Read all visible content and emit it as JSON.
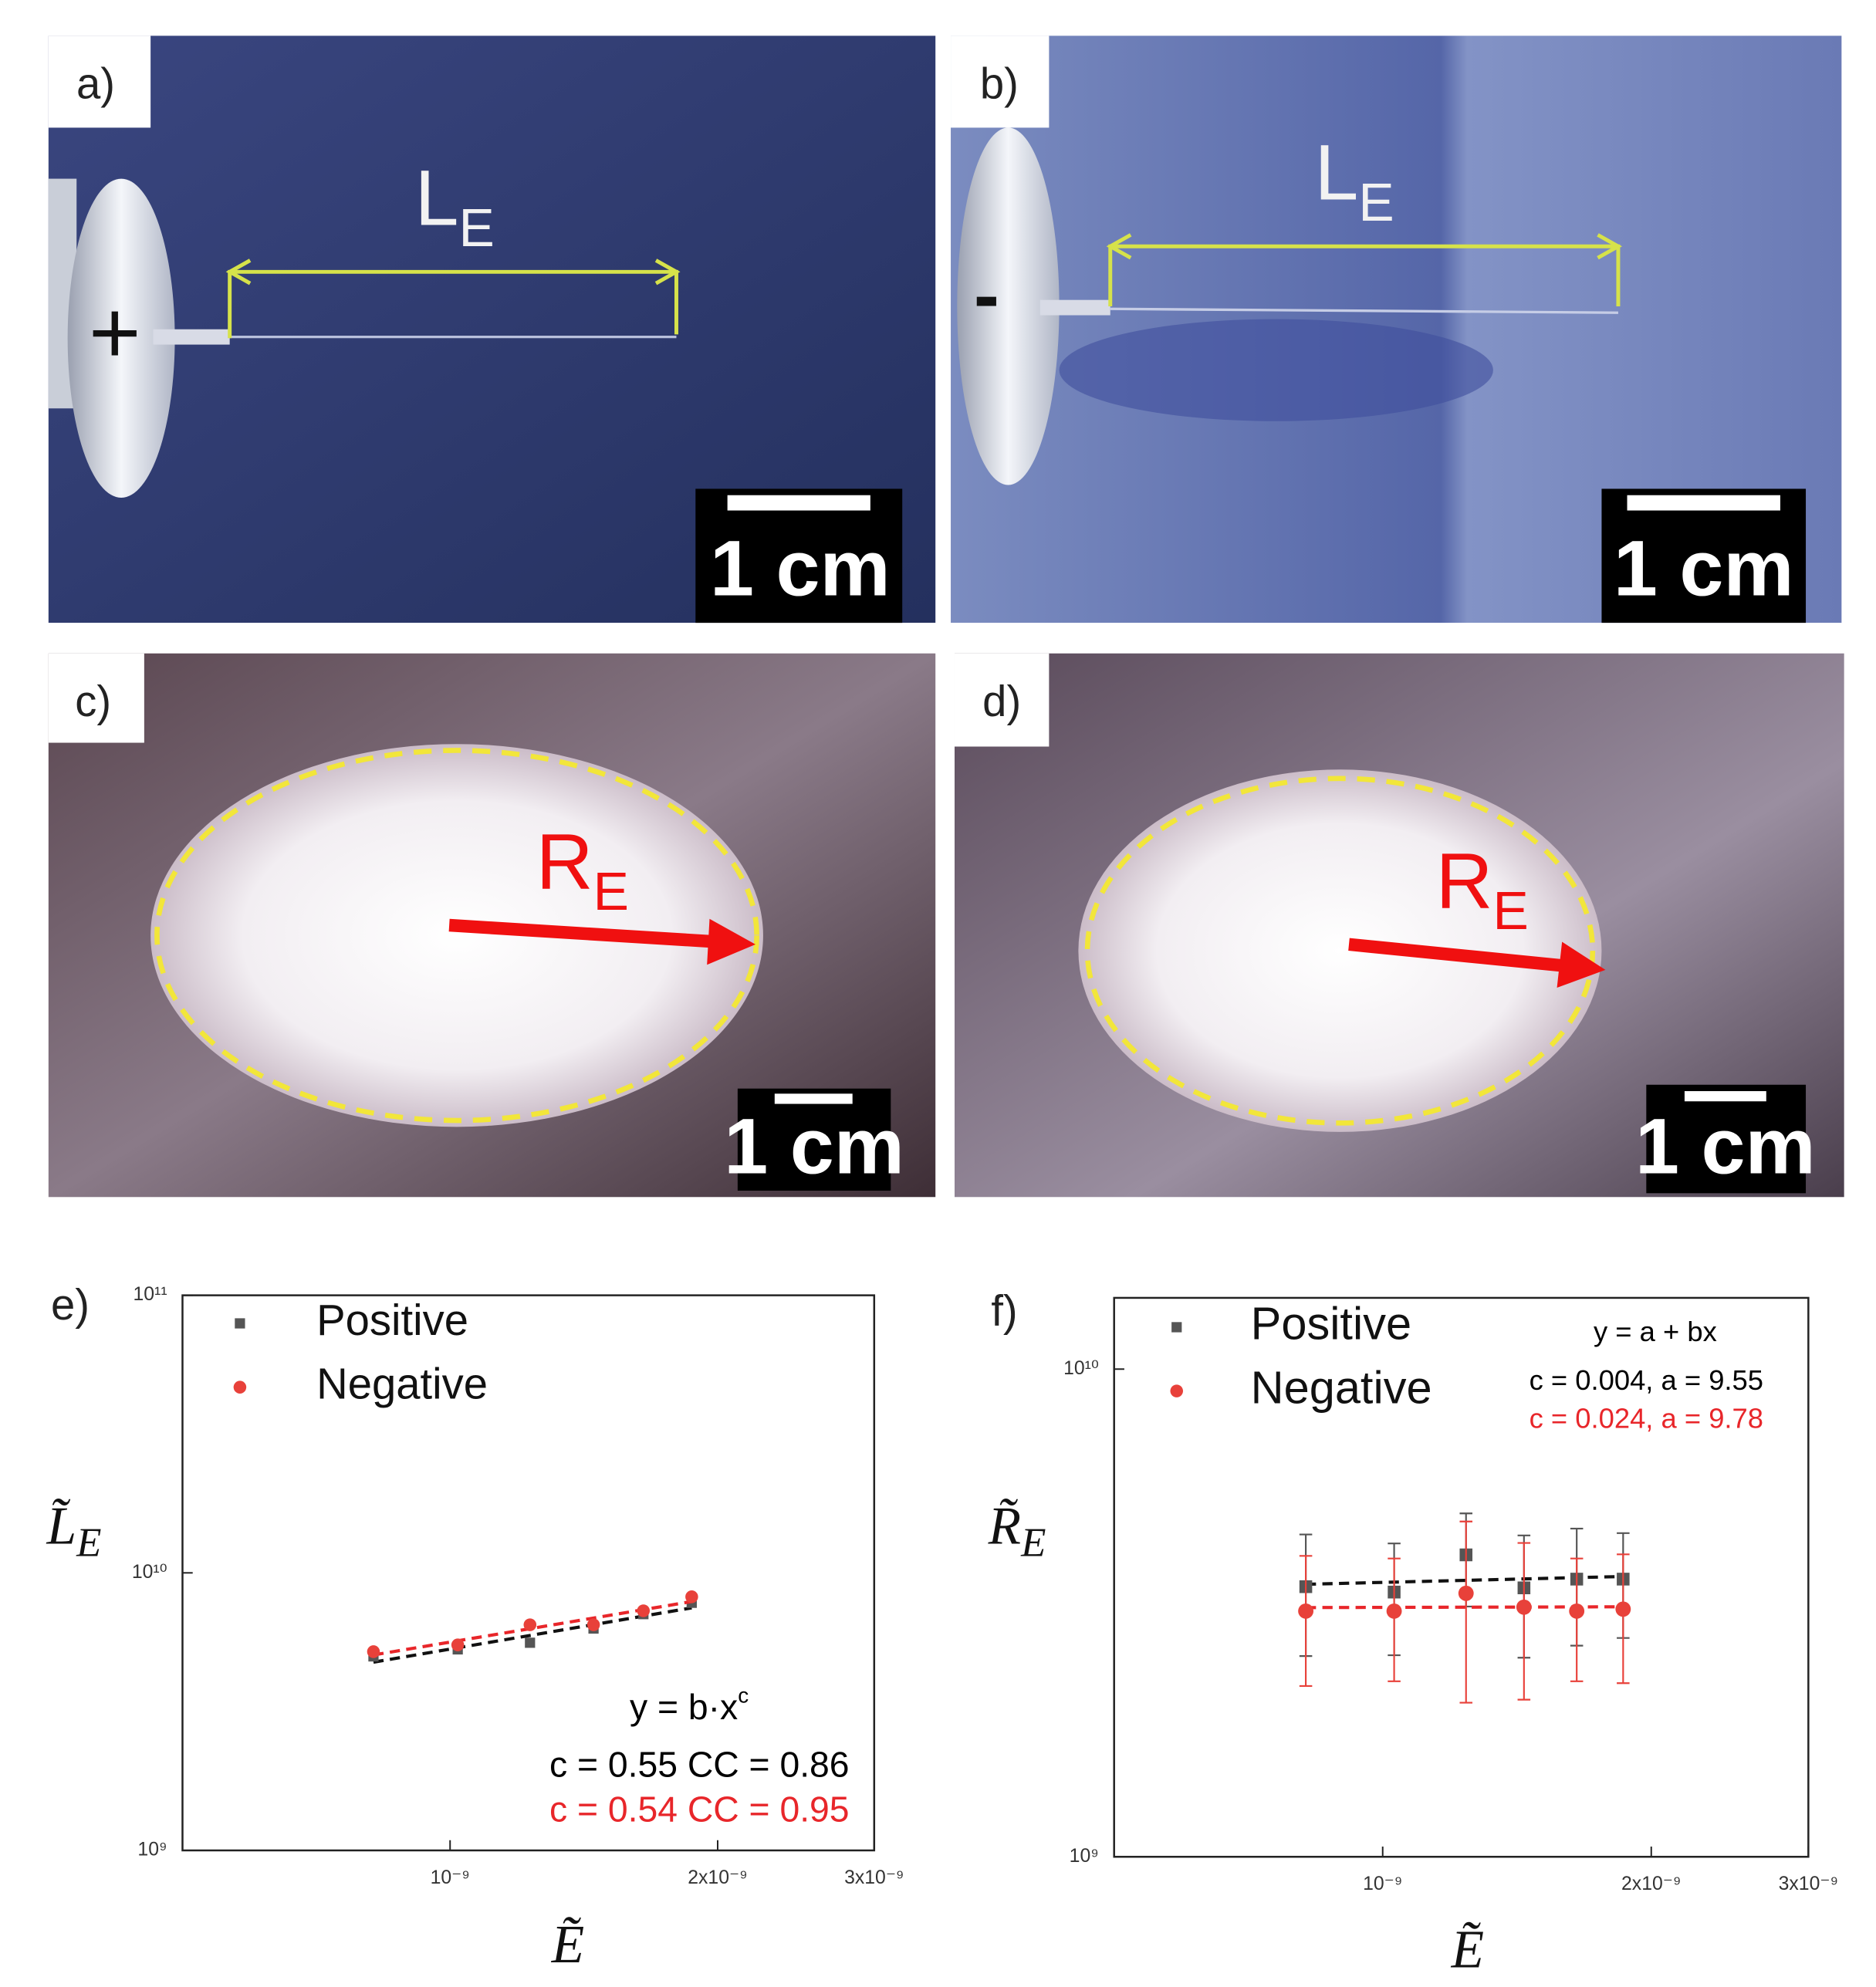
{
  "photos": [
    {
      "label": "a)",
      "marker": "+",
      "measure": {
        "text": "L",
        "sub": "E"
      },
      "scale": "1 cm"
    },
    {
      "label": "b)",
      "marker": "-",
      "measure": {
        "text": "L",
        "sub": "E"
      },
      "scale": "1 cm"
    },
    {
      "label": "c)",
      "measure": {
        "text": "R",
        "sub": "E"
      },
      "scale": "1 cm"
    },
    {
      "label": "d)",
      "measure": {
        "text": "R",
        "sub": "E"
      },
      "scale": "1 cm"
    }
  ],
  "chart_data": [
    {
      "type": "scatter",
      "panel_label": "e)",
      "xlabel": "Ẽ",
      "ylabel": {
        "text": "L̃",
        "sub": "E"
      },
      "log_x": true,
      "log_y": true,
      "fit": "power",
      "legend": "upper left",
      "xlim": [
        5e-10,
        3e-09
      ],
      "ylim": [
        1000000000.0,
        100000000000.0
      ],
      "xticks": [
        {
          "value": 1e-09,
          "label": "10⁻⁹"
        },
        {
          "value": 2e-09,
          "label": "2x10⁻⁹"
        },
        {
          "value": 3e-09,
          "label": "3x10⁻⁹"
        }
      ],
      "yticks": [
        {
          "value": 1000000000.0,
          "label": "10⁹"
        },
        {
          "value": 10000000000.0,
          "label": "10¹⁰"
        },
        {
          "value": 100000000000.0,
          "label": "10¹¹"
        }
      ],
      "series": [
        {
          "name": "Positive",
          "color": "#555555",
          "marker": "square",
          "x": [
            8.2e-10,
            1.02e-09,
            1.23e-09,
            1.45e-09,
            1.65e-09,
            1.87e-09
          ],
          "values": [
            5000000000.0,
            5300000000.0,
            5600000000.0,
            6300000000.0,
            7100000000.0,
            7800000000.0
          ]
        },
        {
          "name": "Negative",
          "color": "#e8413a",
          "marker": "circle",
          "x": [
            8.2e-10,
            1.02e-09,
            1.23e-09,
            1.45e-09,
            1.65e-09,
            1.87e-09
          ],
          "values": [
            5200000000.0,
            5500000000.0,
            6500000000.0,
            6500000000.0,
            7300000000.0,
            8200000000.0
          ]
        }
      ],
      "annotations": [
        {
          "text": "y = b·x",
          "sup": "c",
          "color": "#000000"
        },
        {
          "text": "c = 0.55 CC = 0.86",
          "color": "#000000"
        },
        {
          "text": "c = 0.54 CC = 0.95",
          "color": "#e8262a"
        }
      ]
    },
    {
      "type": "scatter",
      "panel_label": "f)",
      "xlabel": "Ẽ",
      "ylabel": {
        "text": "R̃",
        "sub": "E"
      },
      "log_x": true,
      "log_y": true,
      "fit": "linear",
      "legend": "upper left",
      "xlim": [
        5e-10,
        3e-09
      ],
      "ylim": [
        1000000000.0,
        14000000000.0
      ],
      "xticks": [
        {
          "value": 1e-09,
          "label": "10⁻⁹"
        },
        {
          "value": 2e-09,
          "label": "2x10⁻⁹"
        },
        {
          "value": 3e-09,
          "label": "3x10⁻⁹"
        }
      ],
      "yticks": [
        {
          "value": 1000000000.0,
          "label": "10⁹"
        },
        {
          "value": 10000000000.0,
          "label": "10¹⁰"
        }
      ],
      "series": [
        {
          "name": "Positive",
          "color": "#555555",
          "marker": "square",
          "x": [
            8.2e-10,
            1.03e-09,
            1.24e-09,
            1.44e-09,
            1.65e-09,
            1.86e-09
          ],
          "values": [
            3580000000.0,
            3490000000.0,
            4160000000.0,
            3560000000.0,
            3710000000.0,
            3710000000.0
          ],
          "errors": [
            1000000000.0,
            900000000.0,
            900000000.0,
            1000000000.0,
            1000000000.0,
            900000000.0
          ]
        },
        {
          "name": "Negative",
          "color": "#e8413a",
          "marker": "circle",
          "x": [
            8.2e-10,
            1.03e-09,
            1.24e-09,
            1.44e-09,
            1.65e-09,
            1.86e-09
          ],
          "values": [
            3190000000.0,
            3190000000.0,
            3470000000.0,
            3250000000.0,
            3190000000.0,
            3220000000.0
          ],
          "errors": [
            950000000.0,
            900000000.0,
            1400000000.0,
            1150000000.0,
            900000000.0,
            950000000.0
          ]
        }
      ],
      "annotations": [
        {
          "text": "y = a + bx",
          "color": "#000000"
        },
        {
          "text": "c = 0.004, a = 9.55",
          "color": "#000000"
        },
        {
          "text": "c = 0.024, a = 9.78",
          "color": "#e8262a"
        }
      ]
    }
  ]
}
